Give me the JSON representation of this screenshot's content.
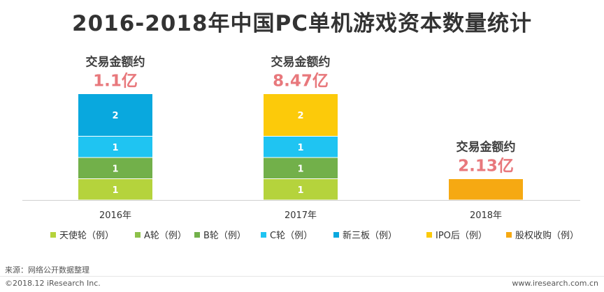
{
  "page": {
    "title": "2016-2018年中国PC单机游戏资本数量统计",
    "source": "来源：网络公开数据整理",
    "copyright": "©2018.12 iResearch Inc.",
    "website": "www.iresearch.com.cn"
  },
  "chart_data": {
    "type": "bar",
    "stacked": true,
    "title": "2016-2018年中国PC单机游戏资本数量统计",
    "categories": [
      "2016年",
      "2017年",
      "2018年"
    ],
    "series": [
      {
        "name": "天使轮（例）",
        "color": "#b5d33c",
        "values": [
          1,
          1,
          0
        ]
      },
      {
        "name": "A轮（例）",
        "color": "#8dc14a",
        "values": [
          0,
          0,
          0
        ]
      },
      {
        "name": "B轮（例）",
        "color": "#72b04a",
        "values": [
          1,
          1,
          0
        ]
      },
      {
        "name": "C轮（例）",
        "color": "#1fc4f2",
        "values": [
          1,
          1,
          0
        ]
      },
      {
        "name": "新三板（例）",
        "color": "#09a8de",
        "values": [
          2,
          0,
          0
        ]
      },
      {
        "name": "IPO后（例）",
        "color": "#fcca0a",
        "values": [
          0,
          2,
          0
        ]
      },
      {
        "name": "股权收购（例）",
        "color": "#f6a912",
        "values": [
          0,
          0,
          1
        ]
      }
    ],
    "annotations": [
      {
        "category": "2016年",
        "label": "交易金额约",
        "value": "1.1亿"
      },
      {
        "category": "2017年",
        "label": "交易金额约",
        "value": "8.47亿"
      },
      {
        "category": "2018年",
        "label": "交易金额约",
        "value": "2.13亿"
      }
    ],
    "legend_position": "bottom",
    "grid": false,
    "annotation_label_color": "#404040",
    "annotation_value_color": "#e8787c"
  }
}
